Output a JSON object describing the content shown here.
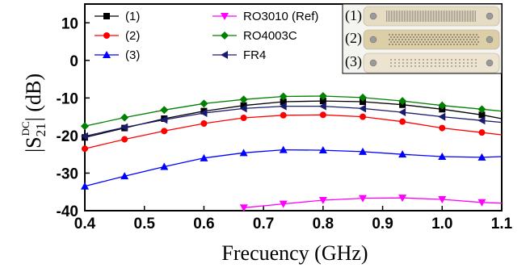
{
  "chart_data": {
    "type": "line",
    "xlabel": "Frecuency (GHz)",
    "ylabel_main": "|S",
    "ylabel_sub": "21",
    "ylabel_sup": "DC",
    "ylabel_tail": "| (dB)",
    "xlim": [
      0.4,
      1.1
    ],
    "ylim": [
      -40,
      15
    ],
    "xticks": [
      "0.4",
      "0.5",
      "0.6",
      "0.7",
      "0.8",
      "0.9",
      "1.0",
      "1.1"
    ],
    "yticks": [
      "10",
      "0",
      "-10",
      "-20",
      "-30",
      "-40"
    ],
    "grid": false,
    "legend_position": "top-left",
    "series": [
      {
        "name": "(1)",
        "color": "#000000",
        "marker": "square",
        "x": [
          0.4,
          0.4667,
          0.5333,
          0.6,
          0.6667,
          0.7333,
          0.8,
          0.8667,
          0.9333,
          1.0,
          1.0667,
          1.1
        ],
        "y": [
          -20.5,
          -18,
          -15.5,
          -13.5,
          -12,
          -11,
          -10.8,
          -11,
          -11.8,
          -13,
          -14.5,
          -15.5
        ]
      },
      {
        "name": "(2)",
        "color": "#ff0000",
        "marker": "circle",
        "x": [
          0.4,
          0.4667,
          0.5333,
          0.6,
          0.6667,
          0.7333,
          0.8,
          0.8667,
          0.9333,
          1.0,
          1.0667,
          1.1
        ],
        "y": [
          -23.5,
          -21,
          -18.8,
          -16.8,
          -15.3,
          -14.6,
          -14.5,
          -15,
          -16.3,
          -18,
          -19.2,
          -19.8
        ]
      },
      {
        "name": "(3)",
        "color": "#0000ff",
        "marker": "triangle-up",
        "x": [
          0.4,
          0.4667,
          0.5333,
          0.6,
          0.6667,
          0.7333,
          0.8,
          0.8667,
          0.9333,
          1.0,
          1.0667,
          1.1
        ],
        "y": [
          -33.5,
          -30.8,
          -28.3,
          -26,
          -24.6,
          -23.8,
          -23.9,
          -24.3,
          -25,
          -25.6,
          -25.8,
          -25.6
        ]
      },
      {
        "name": "RO3010 (Ref)",
        "color": "#ff00ff",
        "marker": "triangle-down",
        "x": [
          0.667,
          0.7333,
          0.8,
          0.8667,
          0.9333,
          1.0,
          1.0667,
          1.1
        ],
        "y": [
          -39.2,
          -38.2,
          -37.2,
          -36.7,
          -36.6,
          -37,
          -37.8,
          -38
        ]
      },
      {
        "name": "RO4003C",
        "color": "#008000",
        "marker": "diamond",
        "x": [
          0.4,
          0.4667,
          0.5333,
          0.6,
          0.6667,
          0.7333,
          0.8,
          0.8667,
          0.9333,
          1.0,
          1.0667,
          1.1
        ],
        "y": [
          -17.5,
          -15.2,
          -13.2,
          -11.5,
          -10.4,
          -9.6,
          -9.5,
          -9.9,
          -10.8,
          -12,
          -13,
          -13.5
        ]
      },
      {
        "name": "FR4",
        "color": "#1a1a6e",
        "marker": "triangle-left",
        "x": [
          0.4,
          0.4667,
          0.5333,
          0.6,
          0.6667,
          0.7333,
          0.8,
          0.8667,
          0.9333,
          1.0,
          1.0667,
          1.1
        ],
        "y": [
          -20.2,
          -17.8,
          -15.8,
          -14,
          -12.8,
          -12.2,
          -12.2,
          -12.8,
          -13.8,
          -15,
          -16,
          -16.5
        ]
      }
    ],
    "inset": {
      "labels": [
        "(1)",
        "(2)",
        "(3)"
      ]
    }
  }
}
